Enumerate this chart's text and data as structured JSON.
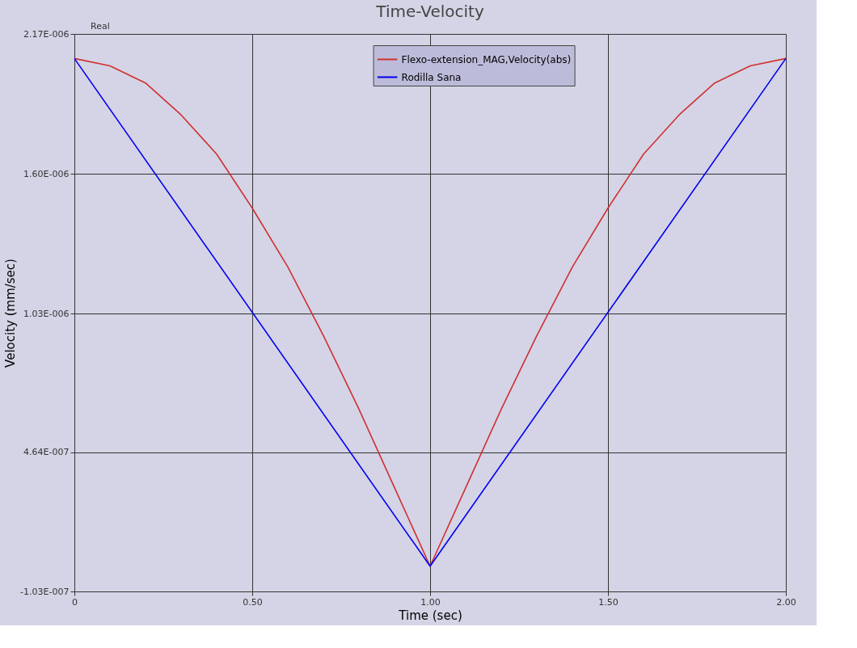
{
  "chart_data": {
    "type": "line",
    "title": "Time-Velocity",
    "xlabel": "Time (sec)",
    "ylabel": "Velocity (mm/sec)",
    "annotations": [
      "Real"
    ],
    "xlim": [
      0,
      2
    ],
    "xticks": [
      {
        "value": 0,
        "label": "0"
      },
      {
        "value": 0.5,
        "label": "0.50"
      },
      {
        "value": 1,
        "label": "1.00"
      },
      {
        "value": 1.5,
        "label": "1.50"
      },
      {
        "value": 2,
        "label": "2.00"
      }
    ],
    "ylim": [
      -1.03e-07,
      2.17e-06
    ],
    "yticks": [
      {
        "value": -1.03e-07,
        "label": "-1.03E-007"
      },
      {
        "value": 4.64e-07,
        "label": "4.64E-007"
      },
      {
        "value": 1.03e-06,
        "label": "1.03E-006"
      },
      {
        "value": 1.6e-06,
        "label": "1.60E-006"
      },
      {
        "value": 2.17e-06,
        "label": "2.17E-006"
      }
    ],
    "grid": true,
    "legend": "top right",
    "line_style": "solid",
    "marker": "none",
    "series": [
      {
        "name": "Flexo-extension_MAG,Velocity(abs)",
        "color": "#d03030",
        "x": [
          0,
          0.1,
          0.2,
          0.3,
          0.4,
          0.5,
          0.6,
          0.7,
          0.8,
          0.9,
          1.0,
          1.1,
          1.2,
          1.3,
          1.4,
          1.5,
          1.6,
          1.7,
          1.8,
          1.9,
          2.0
        ],
        "values": [
          2.07e-06,
          2.04e-06,
          1.97e-06,
          1.84e-06,
          1.68e-06,
          1.46e-06,
          1.22e-06,
          9.4e-07,
          6.4e-07,
          3.2e-07,
          0,
          3.2e-07,
          6.4e-07,
          9.4e-07,
          1.22e-06,
          1.46e-06,
          1.68e-06,
          1.84e-06,
          1.97e-06,
          2.04e-06,
          2.07e-06
        ]
      },
      {
        "name": "Rodilla Sana",
        "color": "#0000ee",
        "x": [
          0,
          1,
          2
        ],
        "values": [
          2.07e-06,
          0,
          2.07e-06
        ]
      }
    ]
  }
}
